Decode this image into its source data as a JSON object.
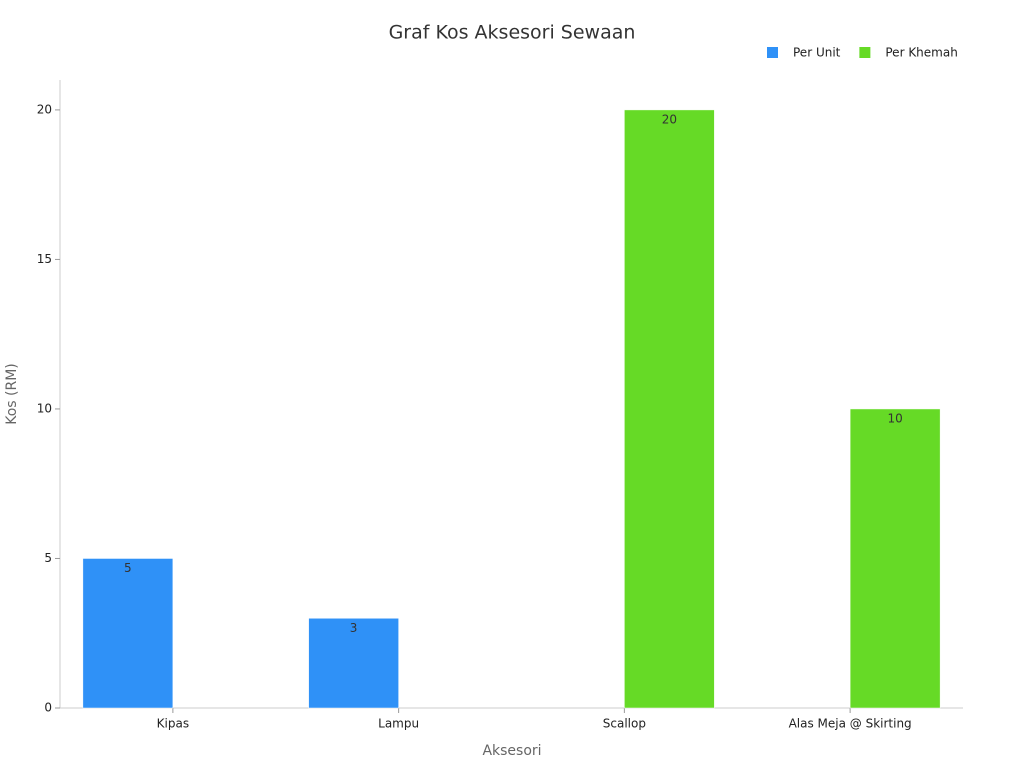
{
  "chart_data": {
    "type": "bar",
    "title": "Graf Kos Aksesori Sewaan",
    "x_label": "Aksesori",
    "y_label": "Kos (RM)",
    "categories": [
      "Kipas",
      "Lampu",
      "Scallop",
      "Alas Meja @ Skirting"
    ],
    "series": [
      {
        "name": "Per Unit",
        "color": "#2f91f7",
        "values": [
          5,
          3,
          null,
          null
        ]
      },
      {
        "name": "Per Khemah",
        "color": "#66da26",
        "values": [
          null,
          null,
          20,
          10
        ]
      }
    ],
    "ylim": [
      0,
      21
    ],
    "yticks": [
      0,
      5,
      10,
      15,
      20
    ],
    "grid": false,
    "legend": "top-right"
  }
}
